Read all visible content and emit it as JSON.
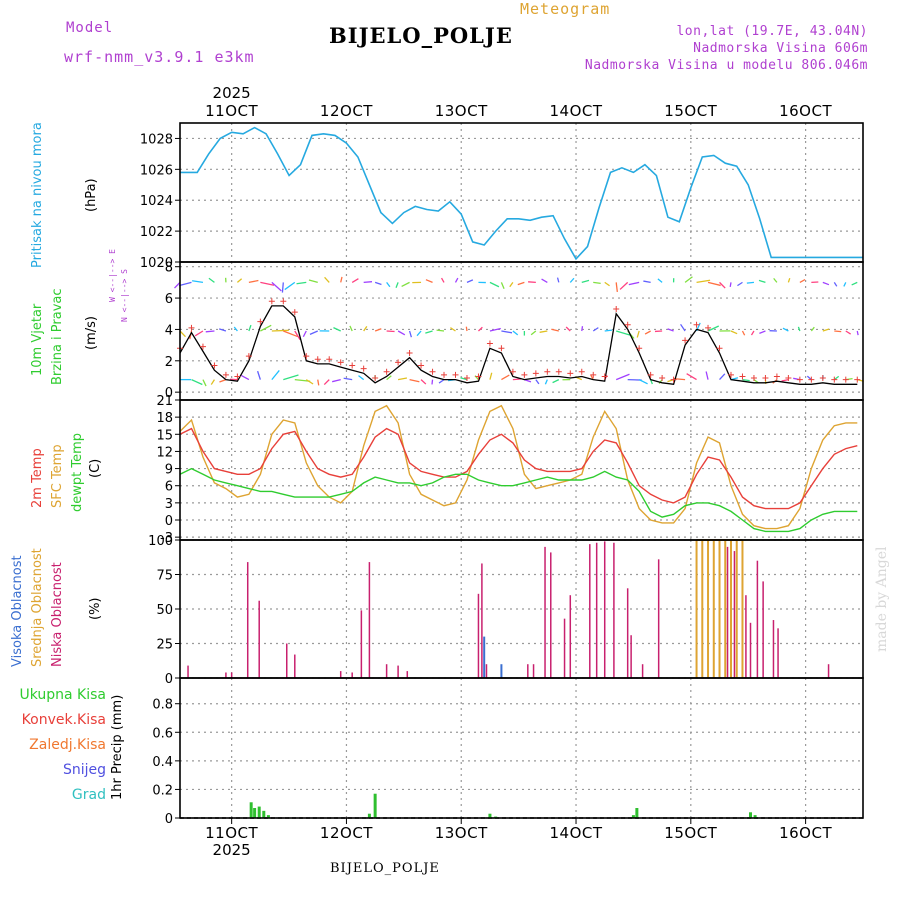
{
  "header": {
    "model_label": "Model",
    "model_name": "wrf-nmm_v3.9.1 e3km",
    "meteogram_label": "Meteogram",
    "station": "BIJELO_POLJE",
    "lonlat": "lon,lat (19.7E, 43.04N)",
    "elevation": "Nadmorska Visina 606m",
    "model_elevation": "Nadmorska Visina u modelu 806.046m",
    "footer_station": "BIJELO_POLJE",
    "watermark": "made by Angel"
  },
  "colors": {
    "pressure": "#26a9e0",
    "temp2m": "#e8403a",
    "sfc": "#dea432",
    "dewpt": "#2fcc2f",
    "low_cloud": "#c8206e",
    "mid_cloud": "#dea432",
    "high_cloud": "#3b6fd0",
    "precip": "#2fbf2f",
    "snow": "#5050e0",
    "grad": "#30c0c0",
    "conv": "#e8403a",
    "frozen": "#f07830",
    "label_purple": "#b040d0"
  },
  "time_axis": {
    "year": "2025",
    "ticks": [
      "11OCT",
      "12OCT",
      "13OCT",
      "14OCT",
      "15OCT",
      "16OCT"
    ],
    "start_day": 10.55,
    "end_day": 16.5
  },
  "chart_data": [
    {
      "type": "line",
      "panel": "pressure",
      "ylabel": "Pritisak na nivou mora",
      "unit": "(hPa)",
      "yticks": [
        "1028",
        "1026",
        "1024",
        "1022",
        "1020"
      ],
      "ylim": [
        1020,
        1029
      ],
      "series": [
        {
          "name": "MSLP",
          "x": [
            10.55,
            10.7,
            10.8,
            10.9,
            11.0,
            11.1,
            11.2,
            11.3,
            11.4,
            11.5,
            11.6,
            11.7,
            11.8,
            11.9,
            12.0,
            12.1,
            12.2,
            12.3,
            12.4,
            12.5,
            12.6,
            12.7,
            12.8,
            12.9,
            13.0,
            13.1,
            13.2,
            13.3,
            13.4,
            13.5,
            13.6,
            13.7,
            13.8,
            13.9,
            14.0,
            14.1,
            14.2,
            14.3,
            14.4,
            14.5,
            14.6,
            14.7,
            14.8,
            14.9,
            15.0,
            15.1,
            15.2,
            15.3,
            15.4,
            15.5,
            15.6,
            15.7,
            15.8,
            15.9,
            16.0,
            16.1,
            16.2,
            16.3,
            16.4,
            16.5
          ],
          "values": [
            1025.8,
            1025.8,
            1027.0,
            1028.0,
            1028.4,
            1028.3,
            1028.7,
            1028.3,
            1027.0,
            1025.6,
            1026.3,
            1028.2,
            1028.3,
            1028.2,
            1027.7,
            1026.8,
            1025.0,
            1023.2,
            1022.5,
            1023.2,
            1023.6,
            1023.4,
            1023.3,
            1023.9,
            1023.1,
            1021.3,
            1021.1,
            1022.0,
            1022.8,
            1022.8,
            1022.7,
            1022.9,
            1023.0,
            1021.5,
            1020.2,
            1021.0,
            1023.5,
            1025.8,
            1026.1,
            1025.8,
            1026.3,
            1025.6,
            1022.9,
            1022.6,
            1024.8,
            1026.8,
            1026.9,
            1026.4,
            1026.2,
            1025.0,
            1022.8,
            1020.3,
            1020.3,
            1020.3,
            1020.3,
            1020.3,
            1020.3,
            1020.3,
            1020.3,
            1020.3
          ]
        }
      ]
    },
    {
      "type": "line",
      "panel": "wind",
      "ylabel": "10m Vjetar",
      "ylabel2": "Brzina i Pravac",
      "unit": "(m/s)",
      "compass": "W  <--|-->  E",
      "compass2": "N <--|--> S",
      "yticks": [
        "8",
        "6",
        "4",
        "2",
        "0"
      ],
      "ylim": [
        -0.5,
        8.3
      ],
      "series": [
        {
          "name": "speed",
          "x": [
            10.55,
            10.65,
            10.75,
            10.85,
            10.95,
            11.05,
            11.15,
            11.25,
            11.35,
            11.45,
            11.55,
            11.65,
            11.75,
            11.85,
            11.95,
            12.05,
            12.15,
            12.25,
            12.35,
            12.45,
            12.55,
            12.65,
            12.75,
            12.85,
            12.95,
            13.05,
            13.15,
            13.25,
            13.35,
            13.45,
            13.55,
            13.65,
            13.75,
            13.85,
            13.95,
            14.05,
            14.15,
            14.25,
            14.35,
            14.45,
            14.55,
            14.65,
            14.75,
            14.85,
            14.95,
            15.05,
            15.15,
            15.25,
            15.35,
            15.45,
            15.55,
            15.65,
            15.75,
            15.85,
            15.95,
            16.05,
            16.15,
            16.25,
            16.35,
            16.45
          ],
          "values": [
            2.5,
            3.8,
            2.6,
            1.4,
            0.8,
            0.7,
            2.0,
            4.2,
            5.5,
            5.5,
            4.8,
            2.0,
            1.8,
            1.8,
            1.6,
            1.4,
            1.2,
            0.6,
            1.0,
            1.6,
            2.2,
            1.4,
            1.0,
            0.8,
            0.8,
            0.6,
            0.7,
            2.8,
            2.5,
            1.0,
            0.8,
            0.9,
            1.0,
            1.0,
            0.9,
            1.0,
            0.8,
            0.7,
            5.0,
            4.0,
            2.5,
            0.8,
            0.6,
            0.5,
            3.0,
            4.0,
            3.8,
            2.5,
            0.8,
            0.7,
            0.6,
            0.6,
            0.7,
            0.6,
            0.5,
            0.5,
            0.6,
            0.5,
            0.5,
            0.5
          ]
        }
      ]
    },
    {
      "type": "line",
      "panel": "temperature",
      "ylabels": [
        "2m Temp",
        "SFC Temp",
        "dewpt Temp"
      ],
      "unit": "(C)",
      "yticks": [
        "21",
        "18",
        "15",
        "12",
        "9",
        "6",
        "3",
        "0",
        "-3"
      ],
      "ylim": [
        -3.5,
        21
      ],
      "series": [
        {
          "name": "2m Temp",
          "x": [
            10.55,
            10.65,
            10.75,
            10.85,
            10.95,
            11.05,
            11.15,
            11.25,
            11.35,
            11.45,
            11.55,
            11.65,
            11.75,
            11.85,
            11.95,
            12.05,
            12.15,
            12.25,
            12.35,
            12.45,
            12.55,
            12.65,
            12.75,
            12.85,
            12.95,
            13.05,
            13.15,
            13.25,
            13.35,
            13.45,
            13.55,
            13.65,
            13.75,
            13.85,
            13.95,
            14.05,
            14.15,
            14.25,
            14.35,
            14.45,
            14.55,
            14.65,
            14.75,
            14.85,
            14.95,
            15.05,
            15.15,
            15.25,
            15.35,
            15.45,
            15.55,
            15.65,
            15.75,
            15.85,
            15.95,
            16.05,
            16.15,
            16.25,
            16.35,
            16.45
          ],
          "values": [
            15.0,
            16.0,
            12.0,
            9.0,
            8.5,
            8.0,
            8.0,
            9.0,
            12.5,
            15.0,
            15.5,
            12.0,
            9.0,
            8.0,
            7.5,
            8.0,
            11.0,
            14.5,
            16.0,
            15.0,
            10.0,
            8.5,
            8.0,
            7.5,
            7.5,
            8.5,
            11.5,
            14.0,
            15.0,
            13.5,
            10.5,
            9.0,
            8.5,
            8.5,
            8.5,
            9.0,
            12.0,
            14.0,
            13.5,
            10.0,
            6.0,
            4.5,
            3.5,
            3.0,
            4.0,
            8.0,
            11.0,
            10.5,
            7.5,
            4.0,
            2.5,
            2.0,
            2.0,
            2.0,
            3.0,
            6.0,
            9.0,
            11.5,
            12.5,
            13.0
          ]
        },
        {
          "name": "SFC Temp",
          "x": [
            10.55,
            10.65,
            10.75,
            10.85,
            10.95,
            11.05,
            11.15,
            11.25,
            11.35,
            11.45,
            11.55,
            11.65,
            11.75,
            11.85,
            11.95,
            12.05,
            12.15,
            12.25,
            12.35,
            12.45,
            12.55,
            12.65,
            12.75,
            12.85,
            12.95,
            13.05,
            13.15,
            13.25,
            13.35,
            13.45,
            13.55,
            13.65,
            13.75,
            13.85,
            13.95,
            14.05,
            14.15,
            14.25,
            14.35,
            14.45,
            14.55,
            14.65,
            14.75,
            14.85,
            14.95,
            15.05,
            15.15,
            15.25,
            15.35,
            15.45,
            15.55,
            15.65,
            15.75,
            15.85,
            15.95,
            16.05,
            16.15,
            16.25,
            16.35,
            16.45
          ],
          "values": [
            15.5,
            17.5,
            11.0,
            6.5,
            5.5,
            4.0,
            4.5,
            8.0,
            15.0,
            17.5,
            17.0,
            10.0,
            6.0,
            4.0,
            3.0,
            5.0,
            13.0,
            19.0,
            20.0,
            17.0,
            8.0,
            4.5,
            3.5,
            2.5,
            3.0,
            7.0,
            14.0,
            19.0,
            20.0,
            16.0,
            8.0,
            5.5,
            6.0,
            6.5,
            7.0,
            8.0,
            14.5,
            19.0,
            16.0,
            7.0,
            2.0,
            0.0,
            -0.5,
            -0.5,
            2.0,
            10.0,
            14.5,
            13.5,
            6.0,
            1.0,
            -1.0,
            -1.5,
            -1.5,
            -1.0,
            2.0,
            9.0,
            14.0,
            16.5,
            17.0,
            17.0
          ]
        },
        {
          "name": "dewpt Temp",
          "x": [
            10.55,
            10.65,
            10.75,
            10.85,
            10.95,
            11.05,
            11.15,
            11.25,
            11.35,
            11.45,
            11.55,
            11.65,
            11.75,
            11.85,
            11.95,
            12.05,
            12.15,
            12.25,
            12.35,
            12.45,
            12.55,
            12.65,
            12.75,
            12.85,
            12.95,
            13.05,
            13.15,
            13.25,
            13.35,
            13.45,
            13.55,
            13.65,
            13.75,
            13.85,
            13.95,
            14.05,
            14.15,
            14.25,
            14.35,
            14.45,
            14.55,
            14.65,
            14.75,
            14.85,
            14.95,
            15.05,
            15.15,
            15.25,
            15.35,
            15.45,
            15.55,
            15.65,
            15.75,
            15.85,
            15.95,
            16.05,
            16.15,
            16.25,
            16.35,
            16.45
          ],
          "values": [
            8.0,
            9.0,
            8.0,
            7.0,
            6.5,
            6.0,
            5.5,
            5.0,
            5.0,
            4.5,
            4.0,
            4.0,
            4.0,
            4.0,
            4.5,
            5.0,
            6.5,
            7.5,
            7.0,
            6.5,
            6.5,
            6.0,
            6.5,
            7.5,
            8.0,
            8.0,
            7.0,
            6.5,
            6.0,
            6.0,
            6.5,
            7.0,
            7.5,
            7.0,
            7.0,
            7.0,
            7.5,
            8.5,
            7.5,
            7.0,
            5.0,
            1.5,
            0.5,
            1.0,
            2.5,
            3.0,
            3.0,
            2.5,
            1.5,
            0.0,
            -1.5,
            -2.0,
            -2.0,
            -2.0,
            -1.5,
            0.0,
            1.0,
            1.5,
            1.5,
            1.5
          ]
        }
      ]
    },
    {
      "type": "bar",
      "panel": "clouds",
      "ylabels": [
        "Visoka Oblacnost",
        "Srednja Oblacnost",
        "Niska Oblacnost"
      ],
      "unit": "(%)",
      "yticks": [
        "100",
        "75",
        "50",
        "25",
        "0"
      ],
      "ylim": [
        0,
        100
      ],
      "series": [
        {
          "name": "Niska",
          "x": [
            10.62,
            10.95,
            11.0,
            11.14,
            11.24,
            11.48,
            11.55,
            11.95,
            12.05,
            12.13,
            12.2,
            12.35,
            12.45,
            12.53,
            13.15,
            13.18,
            13.22,
            13.58,
            13.63,
            13.73,
            13.78,
            13.9,
            13.95,
            14.12,
            14.18,
            14.25,
            14.33,
            14.45,
            14.48,
            14.58,
            14.72,
            15.32,
            15.38,
            15.48,
            15.52,
            15.58,
            15.63,
            15.72,
            15.76,
            16.2
          ],
          "values": [
            9,
            4,
            4,
            84,
            56,
            25,
            17,
            5,
            4,
            49,
            84,
            10,
            9,
            5,
            61,
            83,
            10,
            10,
            10,
            95,
            91,
            43,
            60,
            97,
            98,
            99,
            98,
            65,
            31,
            10,
            86,
            95,
            92,
            60,
            40,
            85,
            70,
            42,
            36,
            10
          ]
        },
        {
          "name": "Srednja",
          "x": [
            15.05,
            15.1,
            15.15,
            15.2,
            15.25,
            15.3,
            15.35,
            15.4,
            15.45
          ],
          "values": [
            100,
            100,
            100,
            100,
            100,
            100,
            100,
            100,
            100
          ]
        },
        {
          "name": "Visoka",
          "x": [
            13.2,
            13.35
          ],
          "values": [
            30,
            10
          ]
        }
      ]
    },
    {
      "type": "bar",
      "panel": "precipitation",
      "ylabels": [
        "Ukupna Kisa",
        "Konvek.Kisa",
        "Zaledj.Kisa",
        "Snijeg",
        "Grad"
      ],
      "ylabel": "1hr Precip (mm)",
      "yticks": [
        "0.8",
        "0.6",
        "0.4",
        "0.2",
        "0"
      ],
      "ylim": [
        0,
        0.98
      ],
      "series": [
        {
          "name": "Ukupna Kisa",
          "x": [
            11.17,
            11.2,
            11.24,
            11.28,
            11.32,
            12.2,
            12.25,
            13.25,
            13.3,
            14.5,
            14.53,
            15.52,
            15.56
          ],
          "values": [
            0.11,
            0.07,
            0.08,
            0.05,
            0.02,
            0.03,
            0.17,
            0.03,
            0.01,
            0.02,
            0.07,
            0.04,
            0.02
          ]
        }
      ]
    }
  ]
}
